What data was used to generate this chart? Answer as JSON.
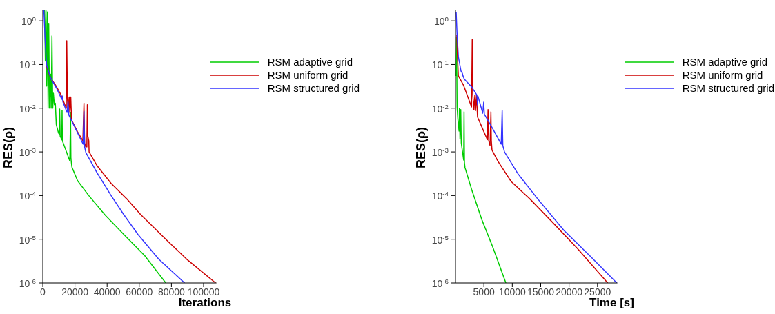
{
  "chart_data": [
    {
      "type": "line",
      "xlabel": "Iterations",
      "ylabel": "RES(ρ)",
      "log": "y",
      "legend": "top right",
      "xlim": [
        0,
        108000
      ],
      "xticks": [
        0,
        20000,
        40000,
        60000,
        80000,
        100000
      ],
      "ylim": [
        1e-06,
        1.8
      ],
      "yticks": [
        {
          "value": 1,
          "label": "10$^{0}$"
        },
        {
          "value": 0.1,
          "label": "10$^{-1}$"
        },
        {
          "value": 0.01,
          "label": "10$^{-2}$"
        },
        {
          "value": 0.001,
          "label": "10$^{-3}$"
        },
        {
          "value": 0.0001,
          "label": "10$^{-4}$"
        },
        {
          "value": 1e-05,
          "label": "10$^{-5}$"
        },
        {
          "value": 1e-06,
          "label": "10$^{-6}$"
        }
      ],
      "series": [
        {
          "name": "RSM adaptive grid",
          "color": "#00cc00",
          "x": [
            0,
            1100,
            1600,
            2000,
            2400,
            2900,
            3300,
            3700,
            4200,
            4900,
            5200,
            5700,
            6200,
            6600,
            7200,
            7800,
            8400,
            9800,
            10400,
            10500,
            10800,
            11850,
            12000,
            12200,
            16800,
            17250,
            17500,
            18100,
            21600,
            28600,
            39000,
            50300,
            63400,
            76500
          ],
          "values": [
            1.3,
            1.7,
            0.12,
            1.7,
            0.032,
            1.6,
            0.01,
            0.85,
            0.01,
            0.06,
            0.01,
            0.45,
            0.01,
            0.022,
            0.012,
            0.013,
            0.0042,
            0.0027,
            0.0025,
            0.0096,
            0.0023,
            0.0019,
            0.009,
            0.0018,
            0.00062,
            0.008,
            0.0007,
            0.00045,
            0.00022,
            0.0001,
            3.5e-05,
            1.3e-05,
            4.2e-06,
            1e-06
          ]
        },
        {
          "name": "RSM uniform grid",
          "color": "#cc0000",
          "x": [
            2400,
            5000,
            7700,
            11100,
            14600,
            14900,
            15300,
            15700,
            16400,
            16800,
            17400,
            17900,
            21600,
            24900,
            25600,
            26000,
            26700,
            27400,
            27700,
            28000,
            28600,
            28800,
            33800,
            42500,
            52100,
            60800,
            76500,
            89500,
            107500
          ],
          "values": [
            0.09,
            0.048,
            0.035,
            0.021,
            0.01,
            0.35,
            0.017,
            0.0085,
            0.018,
            0.008,
            0.018,
            0.0054,
            0.0029,
            0.0018,
            0.013,
            0.0016,
            0.0013,
            0.0013,
            0.012,
            0.0023,
            0.0018,
            0.001,
            0.00048,
            0.00019,
            8.5e-05,
            3.7e-05,
            1e-05,
            3.5e-06,
            1e-06
          ]
        },
        {
          "name": "RSM structured grid",
          "color": "#3333ff",
          "x": [
            300,
            700,
            1600,
            2400,
            5000,
            8500,
            11800,
            12200,
            12500,
            15100,
            15700,
            16200,
            19900,
            25100,
            25600,
            26000,
            26800,
            33800,
            42500,
            50300,
            59100,
            72100,
            88200
          ],
          "values": [
            1.4,
            1.7,
            0.28,
            0.096,
            0.048,
            0.029,
            0.016,
            0.019,
            0.014,
            0.008,
            0.014,
            0.007,
            0.0037,
            0.0015,
            0.0085,
            0.0013,
            0.00096,
            0.00033,
            0.0001,
            3.7e-05,
            1.3e-05,
            3.5e-06,
            1e-06
          ]
        }
      ]
    },
    {
      "type": "line",
      "xlabel": "Time [s]",
      "ylabel": "RES(ρ)",
      "log": "y",
      "legend": "top right",
      "xlim": [
        0,
        28500
      ],
      "xticks": [
        5000,
        10000,
        15000,
        20000,
        25000
      ],
      "ylim": [
        1e-06,
        1.8
      ],
      "yticks": [
        {
          "value": 1,
          "label": "10$^{0}$"
        },
        {
          "value": 0.1,
          "label": "10$^{-1}$"
        },
        {
          "value": 0.01,
          "label": "10$^{-2}$"
        },
        {
          "value": 0.001,
          "label": "10$^{-3}$"
        },
        {
          "value": 0.0001,
          "label": "10$^{-4}$"
        },
        {
          "value": 1e-05,
          "label": "10$^{-5}$"
        },
        {
          "value": 1e-06,
          "label": "10$^{-6}$"
        }
      ],
      "series": [
        {
          "name": "RSM adaptive grid",
          "color": "#00cc00",
          "x": [
            120,
            190,
            280,
            420,
            630,
            700,
            790,
            930,
            1020,
            1440,
            1510,
            1580,
            1670,
            2830,
            4690,
            6550,
            8870
          ],
          "values": [
            0.055,
            0.42,
            0.0107,
            0.0056,
            0.003,
            0.01,
            0.002,
            0.0093,
            0.0016,
            0.00065,
            0.0083,
            0.00057,
            0.00044,
            0.00014,
            2.7e-05,
            6.7e-06,
            1e-06
          ]
        },
        {
          "name": "RSM uniform grid",
          "color": "#cc0000",
          "x": [
            230,
            350,
            510,
            1440,
            2830,
            2950,
            3060,
            3250,
            3410,
            3530,
            3690,
            3880,
            4690,
            5620,
            5730,
            5850,
            6080,
            6240,
            6310,
            6430,
            7470,
            9800,
            13050,
            16760,
            21400,
            26800
          ],
          "values": [
            0.48,
            0.15,
            0.055,
            0.033,
            0.0107,
            0.37,
            0.02,
            0.0093,
            0.02,
            0.0088,
            0.02,
            0.0063,
            0.0036,
            0.0019,
            0.0093,
            0.0018,
            0.0014,
            0.0083,
            0.0018,
            0.0011,
            0.00061,
            0.00021,
            8.5e-05,
            2.7e-05,
            6.3e-06,
            1e-06
          ]
        },
        {
          "name": "RSM structured grid",
          "color": "#3333ff",
          "x": [
            120,
            280,
            510,
            970,
            1210,
            1320,
            1560,
            2830,
            3760,
            3880,
            3950,
            4800,
            4970,
            5080,
            6550,
            8050,
            8220,
            8330,
            8630,
            10960,
            14440,
            19080,
            23720,
            28400
          ],
          "values": [
            1.6,
            0.48,
            0.15,
            0.071,
            0.063,
            0.055,
            0.046,
            0.031,
            0.02,
            0.012,
            0.019,
            0.0077,
            0.0137,
            0.0073,
            0.0034,
            0.0015,
            0.0088,
            0.0014,
            0.001,
            0.00032,
            8.5e-05,
            1.6e-05,
            4.1e-06,
            1e-06
          ]
        }
      ]
    }
  ]
}
